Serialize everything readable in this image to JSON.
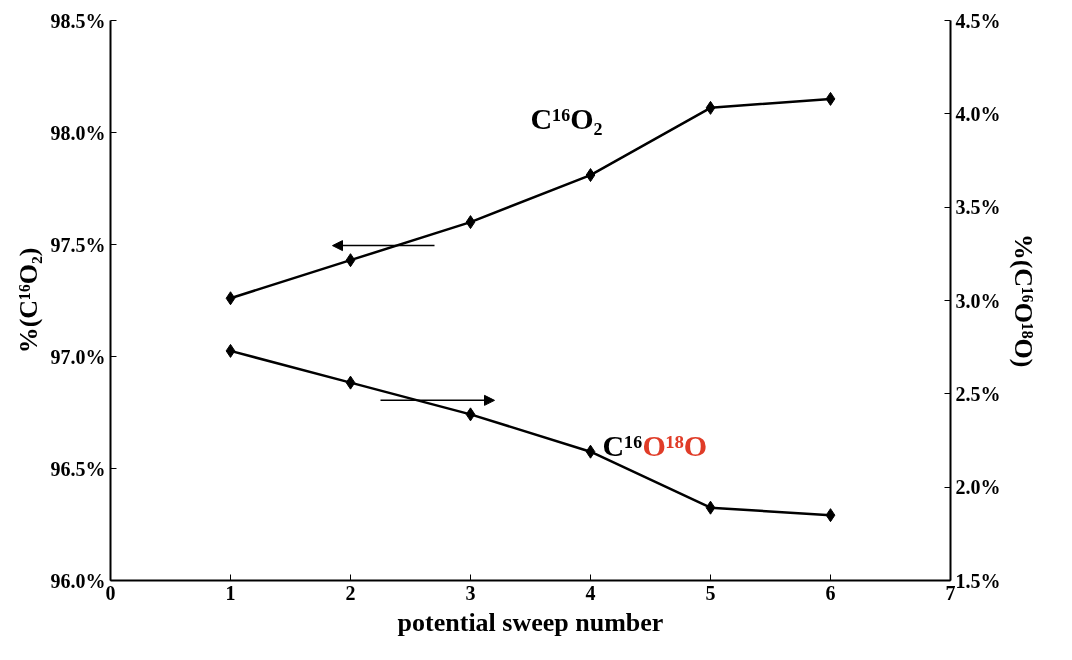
{
  "chart_data": {
    "type": "line",
    "xlabel": "potential sweep number",
    "ylabel": "%(C¹⁶O₂)",
    "y2label": "%(C¹⁶O¹⁸O)",
    "x": [
      1,
      2,
      3,
      4,
      5,
      6
    ],
    "series": [
      {
        "color": "#000000",
        "values": [
          97.26,
          97.43,
          97.6,
          97.81,
          98.11,
          98.15
        ]
      },
      {
        "color": "#000000",
        "axis": "y2",
        "values": [
          2.73,
          2.56,
          2.39,
          2.19,
          1.89,
          1.85
        ]
      }
    ],
    "annotations": [
      "C¹⁶O₂",
      "C¹⁶O¹⁸O"
    ],
    "xlim": [
      0,
      7
    ],
    "xticks": [
      0,
      1,
      2,
      3,
      4,
      5,
      6,
      7
    ],
    "ylim": [
      96.0,
      98.5
    ],
    "yticks": [
      {
        "value": 96.0,
        "label": "96.0%"
      },
      {
        "value": 96.5,
        "label": "96.5%"
      },
      {
        "value": 97.0,
        "label": "97.0%"
      },
      {
        "value": 97.5,
        "label": "97.5%"
      },
      {
        "value": 98.0,
        "label": "98.0%"
      },
      {
        "value": 98.5,
        "label": "98.5%"
      }
    ],
    "y2lim": [
      1.5,
      4.5
    ],
    "y2ticks": [
      {
        "value": 1.5,
        "label": "1.5%"
      },
      {
        "value": 2.0,
        "label": "2.0%"
      },
      {
        "value": 2.5,
        "label": "2.5%"
      },
      {
        "value": 3.0,
        "label": "3.0%"
      },
      {
        "value": 3.5,
        "label": "3.5%"
      },
      {
        "value": 4.0,
        "label": "4.0%"
      },
      {
        "value": 4.5,
        "label": "4.5%"
      }
    ],
    "marker": "diamond",
    "grid": false
  }
}
